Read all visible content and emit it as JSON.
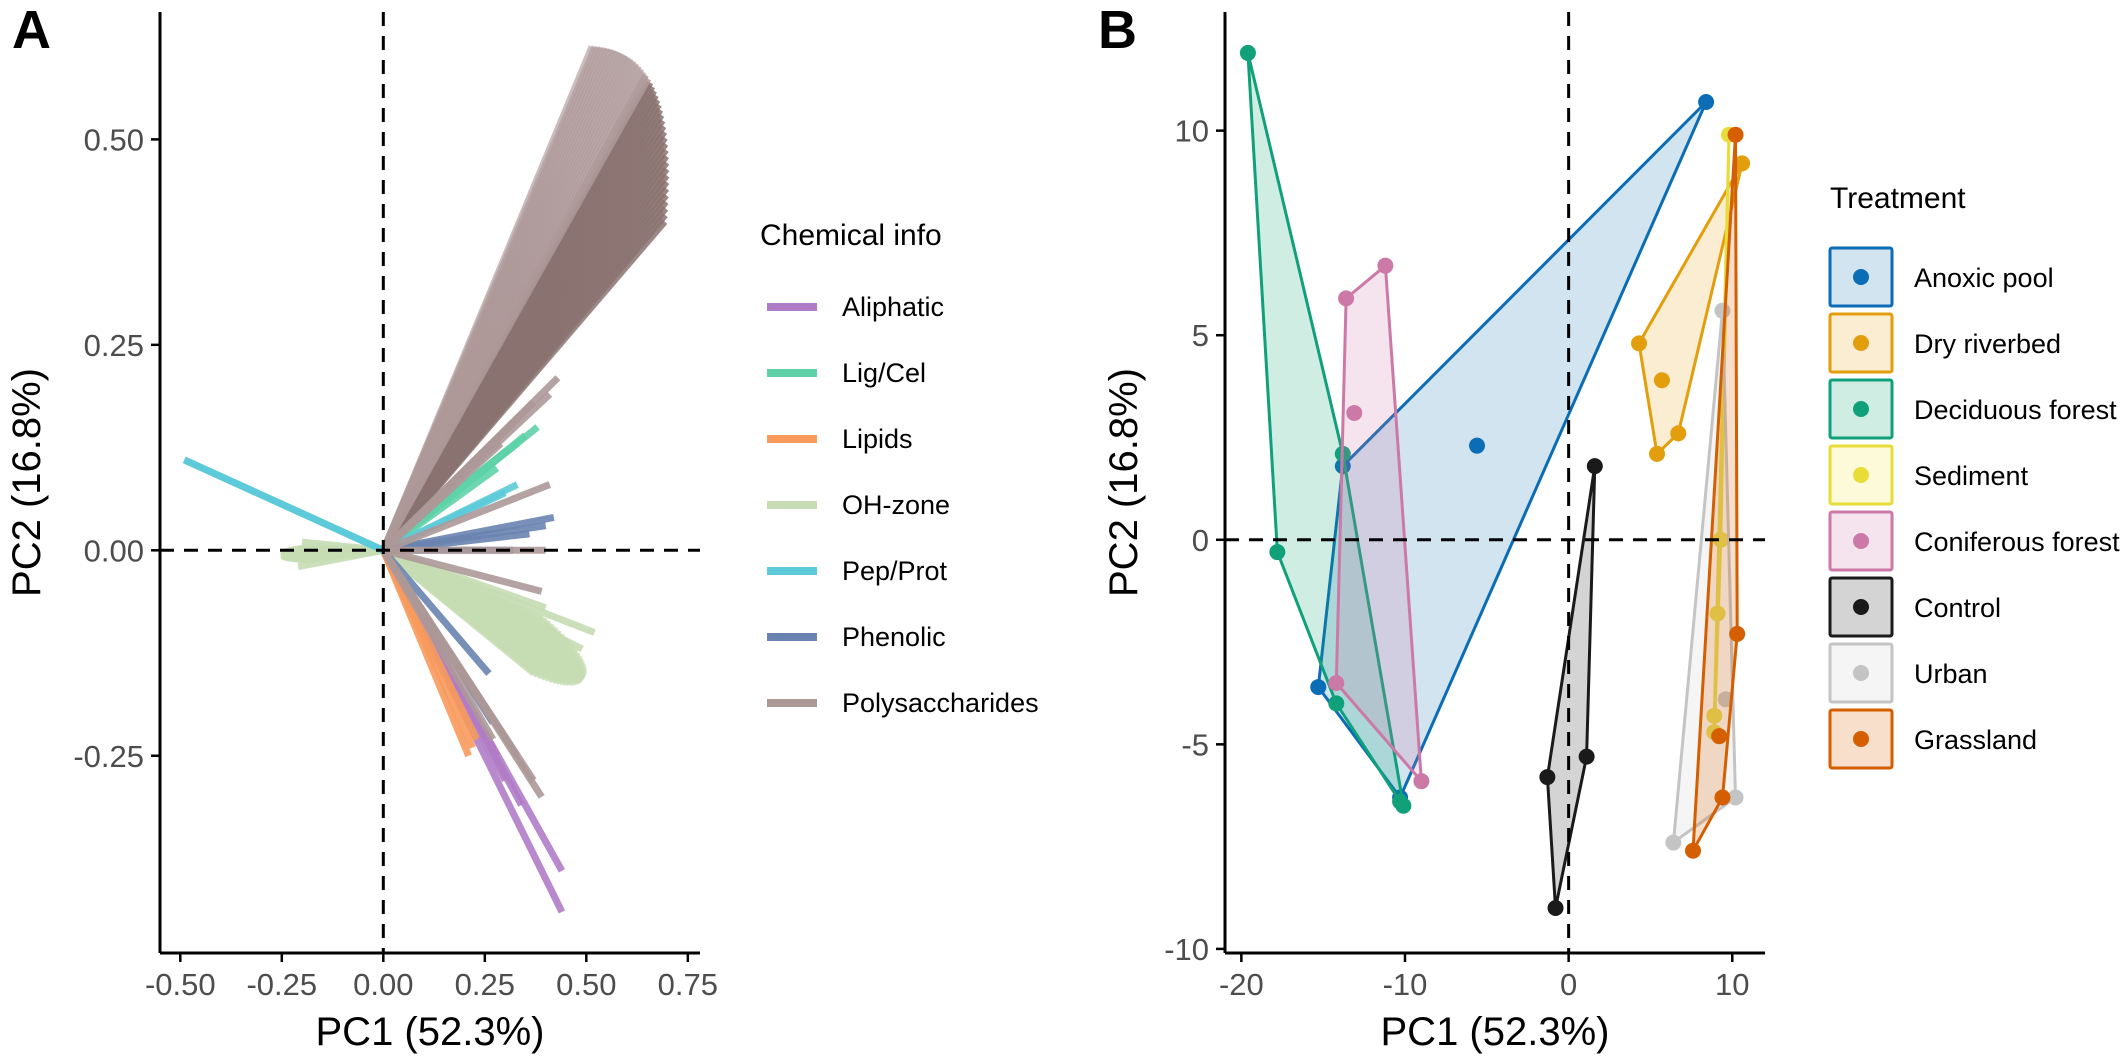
{
  "panel_labels": {
    "a": "A",
    "b": "B"
  },
  "chart_data": [
    {
      "panel": "A",
      "type": "biplot-loadings",
      "xlabel": "PC1 (52.3%)",
      "ylabel": "PC2 (16.8%)",
      "xlim": [
        -0.55,
        0.78
      ],
      "ylim": [
        -0.49,
        0.655
      ],
      "xticks": [
        -0.5,
        -0.25,
        0.0,
        0.25,
        0.5,
        0.75
      ],
      "xtick_labels": [
        "-0.50",
        "-0.25",
        "0.00",
        "0.25",
        "0.50",
        "0.75"
      ],
      "yticks": [
        -0.25,
        0.0,
        0.25,
        0.5
      ],
      "ytick_labels": [
        "-0.25",
        "0.00",
        "0.25",
        "0.50"
      ],
      "reference_lines": {
        "x": 0,
        "y": 0,
        "style": "dashed"
      },
      "legend": {
        "title": "Chemical info",
        "placement": "right"
      },
      "series": [
        {
          "name": "Aliphatic",
          "color": "#b07cc6",
          "vectors": [
            [
              0.44,
              -0.44
            ],
            [
              0.44,
              -0.39
            ],
            [
              0.34,
              -0.31
            ],
            [
              0.3,
              -0.28
            ],
            [
              0.28,
              -0.25
            ]
          ]
        },
        {
          "name": "Lig/Cel",
          "color": "#5ed1a8",
          "vectors": [
            [
              0.38,
              0.15
            ],
            [
              0.35,
              0.14
            ],
            [
              0.33,
              0.13
            ],
            [
              0.3,
              0.12
            ],
            [
              0.28,
              0.1
            ]
          ]
        },
        {
          "name": "Lipids",
          "color": "#f79a5c",
          "vectors": [
            [
              0.21,
              -0.25
            ],
            [
              0.22,
              -0.24
            ],
            [
              0.23,
              -0.23
            ]
          ]
        },
        {
          "name": "OH-zone",
          "color": "#c5dcb3",
          "fan": [
            {
              "angle_from": 1.0,
              "angle_to": -3.5,
              "len_from": 0.22,
              "len_to": 0.22,
              "count": 40,
              "comment": "left fan toward (-0.22, 0.0)"
            },
            {
              "angle_from": -12,
              "angle_to": -22,
              "len_from": 0.4,
              "len_to": 0.52,
              "count": 40
            }
          ],
          "vectors": [
            [
              -0.22,
              0.0
            ],
            [
              -0.21,
              -0.02
            ],
            [
              -0.2,
              0.01
            ],
            [
              0.52,
              -0.1
            ],
            [
              0.49,
              -0.12
            ],
            [
              0.45,
              -0.14
            ],
            [
              0.4,
              -0.07
            ]
          ]
        },
        {
          "name": "Pep/Prot",
          "color": "#5ccad8",
          "vectors": [
            [
              -0.49,
              0.11
            ],
            [
              0.33,
              0.08
            ],
            [
              0.3,
              0.07
            ]
          ]
        },
        {
          "name": "Phenolic",
          "color": "#6983b0",
          "vectors": [
            [
              0.42,
              0.04
            ],
            [
              0.4,
              0.03
            ],
            [
              0.36,
              0.02
            ],
            [
              0.32,
              0.0
            ],
            [
              0.26,
              -0.15
            ],
            [
              0.27,
              -0.21
            ]
          ]
        },
        {
          "name": "Polysaccharides",
          "color": "#ad9898",
          "fan": [
            {
              "angle_from": 30,
              "angle_to": 50,
              "len_from": 0.8,
              "len_to": 0.87,
              "count": 45,
              "comment": "upper brown fan"
            }
          ],
          "vectors": [
            [
              0.41,
              0.19
            ],
            [
              0.41,
              0.08
            ],
            [
              0.4,
              0.0
            ],
            [
              0.39,
              -0.05
            ],
            [
              0.39,
              -0.3
            ],
            [
              0.37,
              -0.28
            ],
            [
              0.33,
              -0.25
            ],
            [
              0.27,
              -0.23
            ],
            [
              0.43,
              0.21
            ],
            [
              0.37,
              0.18
            ],
            [
              0.33,
              0.16
            ],
            [
              0.29,
              0.13
            ]
          ]
        }
      ]
    },
    {
      "panel": "B",
      "type": "scatter-hull",
      "xlabel": "PC1 (52.3%)",
      "ylabel": "PC2 (16.8%)",
      "xlim": [
        -21,
        12
      ],
      "ylim": [
        -10.1,
        12.9
      ],
      "xticks": [
        -20,
        -10,
        0,
        10
      ],
      "xtick_labels": [
        "-20",
        "-10",
        "0",
        "10"
      ],
      "yticks": [
        -10,
        -5,
        0,
        5,
        10
      ],
      "ytick_labels": [
        "-10",
        "-5",
        "0",
        "5",
        "10"
      ],
      "reference_lines": {
        "x": 0,
        "y": 0,
        "style": "dashed"
      },
      "legend": {
        "title": "Treatment",
        "placement": "right"
      },
      "series": [
        {
          "name": "Anoxic pool",
          "color": "#1f77b4",
          "stroke": "#0b6db5",
          "points": [
            [
              8.4,
              10.7
            ],
            [
              -5.6,
              2.3
            ],
            [
              -13.8,
              1.8
            ],
            [
              -15.3,
              -3.6
            ],
            [
              -10.3,
              -6.3
            ]
          ]
        },
        {
          "name": "Dry riverbed",
          "color": "#e8a317",
          "stroke": "#e39e0d",
          "points": [
            [
              10.6,
              9.2
            ],
            [
              4.3,
              4.8
            ],
            [
              5.7,
              3.9
            ],
            [
              5.4,
              2.1
            ],
            [
              6.7,
              2.6
            ]
          ]
        },
        {
          "name": "Deciduous forest",
          "color": "#12a37a",
          "stroke": "#10a07a",
          "points": [
            [
              -19.6,
              11.9
            ],
            [
              -17.8,
              -0.3
            ],
            [
              -13.8,
              2.1
            ],
            [
              -14.2,
              -4.0
            ],
            [
              -10.3,
              -6.4
            ],
            [
              -10.1,
              -6.5
            ]
          ]
        },
        {
          "name": "Sediment",
          "color": "#f0e442",
          "stroke": "#e7dc38",
          "points": [
            [
              9.3,
              0.0
            ],
            [
              9.1,
              -1.8
            ],
            [
              8.9,
              -4.3
            ],
            [
              8.9,
              -4.7
            ],
            [
              9.8,
              9.9
            ]
          ]
        },
        {
          "name": "Coniferous forest",
          "color": "#cc79a7",
          "stroke": "#cc79a7",
          "points": [
            [
              -13.6,
              5.9
            ],
            [
              -11.2,
              6.7
            ],
            [
              -13.1,
              3.1
            ],
            [
              -14.2,
              -3.5
            ],
            [
              -9.0,
              -5.9
            ]
          ]
        },
        {
          "name": "Control",
          "color": "#262626",
          "stroke": "#1a1a1a",
          "points": [
            [
              1.6,
              1.8
            ],
            [
              1.1,
              -5.3
            ],
            [
              -1.3,
              -5.8
            ],
            [
              -0.8,
              -9.0
            ]
          ]
        },
        {
          "name": "Urban",
          "color": "#cccccc",
          "stroke": "#c4c4c4",
          "points": [
            [
              9.4,
              5.6
            ],
            [
              9.6,
              -3.9
            ],
            [
              10.2,
              -6.3
            ],
            [
              6.4,
              -7.4
            ]
          ]
        },
        {
          "name": "Grassland",
          "color": "#d55e00",
          "stroke": "#d55e00",
          "points": [
            [
              10.2,
              9.9
            ],
            [
              10.3,
              -2.3
            ],
            [
              9.2,
              -4.8
            ],
            [
              9.4,
              -6.3
            ],
            [
              7.6,
              -7.6
            ]
          ]
        }
      ]
    }
  ]
}
